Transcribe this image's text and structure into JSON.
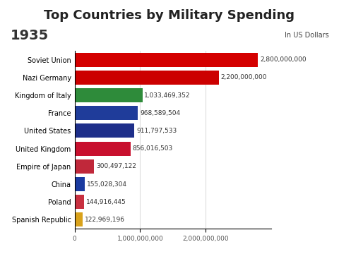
{
  "chart_data": {
    "type": "bar",
    "orientation": "horizontal",
    "title": "Top Countries by Military Spending",
    "subtitle": "In US Dollars",
    "annotations": [
      "1935"
    ],
    "categories": [
      "Soviet Union",
      "Nazi Germany",
      "Kingdom of Italy",
      "France",
      "United States",
      "United Kingdom",
      "Empire of Japan",
      "China",
      "Poland",
      "Spanish Republic"
    ],
    "values": [
      2800000000,
      2200000000,
      1033469352,
      968589504,
      911797533,
      856016503,
      300497122,
      155028304,
      144916445,
      122969196
    ],
    "value_labels": [
      "2,800,000,000",
      "2,200,000,000",
      "1,033,469,352",
      "968,589,504",
      "911,797,533",
      "856,016,503",
      "300,497,122",
      "155,028,304",
      "144,916,445",
      "122,969,196"
    ],
    "colors": [
      "#d40000",
      "#cc0000",
      "#2e8b3a",
      "#1f3c9a",
      "#1e2f8a",
      "#c8102e",
      "#c0283a",
      "#1a3aa0",
      "#c83040",
      "#d9a21b"
    ],
    "data_labels": true,
    "xlim": [
      0,
      3000000000
    ],
    "xticks": [
      0,
      {
        "value": 1000000000,
        "label": "1,000,000,000"
      },
      {
        "value": 2000000000,
        "label": "2,000,000,000"
      }
    ],
    "grid": true
  }
}
